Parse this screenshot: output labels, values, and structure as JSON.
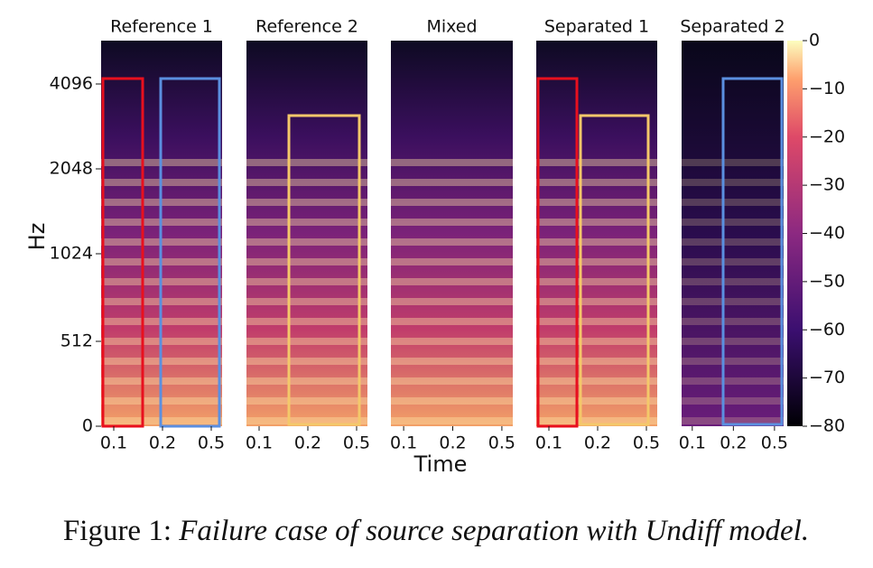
{
  "figure": {
    "panels": [
      {
        "title": "Reference 1",
        "xticks": [
          "0.1",
          "0.2",
          "0.5"
        ]
      },
      {
        "title": "Reference 2",
        "xticks": [
          "0.1",
          "0.2",
          "0.5"
        ]
      },
      {
        "title": "Mixed",
        "xticks": [
          "0.1",
          "0.2",
          "0.5"
        ]
      },
      {
        "title": "Separated 1",
        "xticks": [
          "0.1",
          "0.2",
          "0.5"
        ]
      },
      {
        "title": "Separated 2",
        "xticks": [
          "0.1",
          "0.2",
          "0.5"
        ]
      }
    ],
    "y_axis": {
      "label": "Hz",
      "ticks": [
        "4096",
        "2048",
        "1024",
        "512",
        "0"
      ]
    },
    "x_axis": {
      "label": "Time"
    },
    "colorbar": {
      "ticks": [
        "0",
        "−10",
        "−20",
        "−30",
        "−40",
        "−50",
        "−60",
        "−70",
        "−80"
      ]
    }
  },
  "caption": {
    "label": "Figure 1:",
    "text": "Failure case of source separation with Undiff model."
  }
}
